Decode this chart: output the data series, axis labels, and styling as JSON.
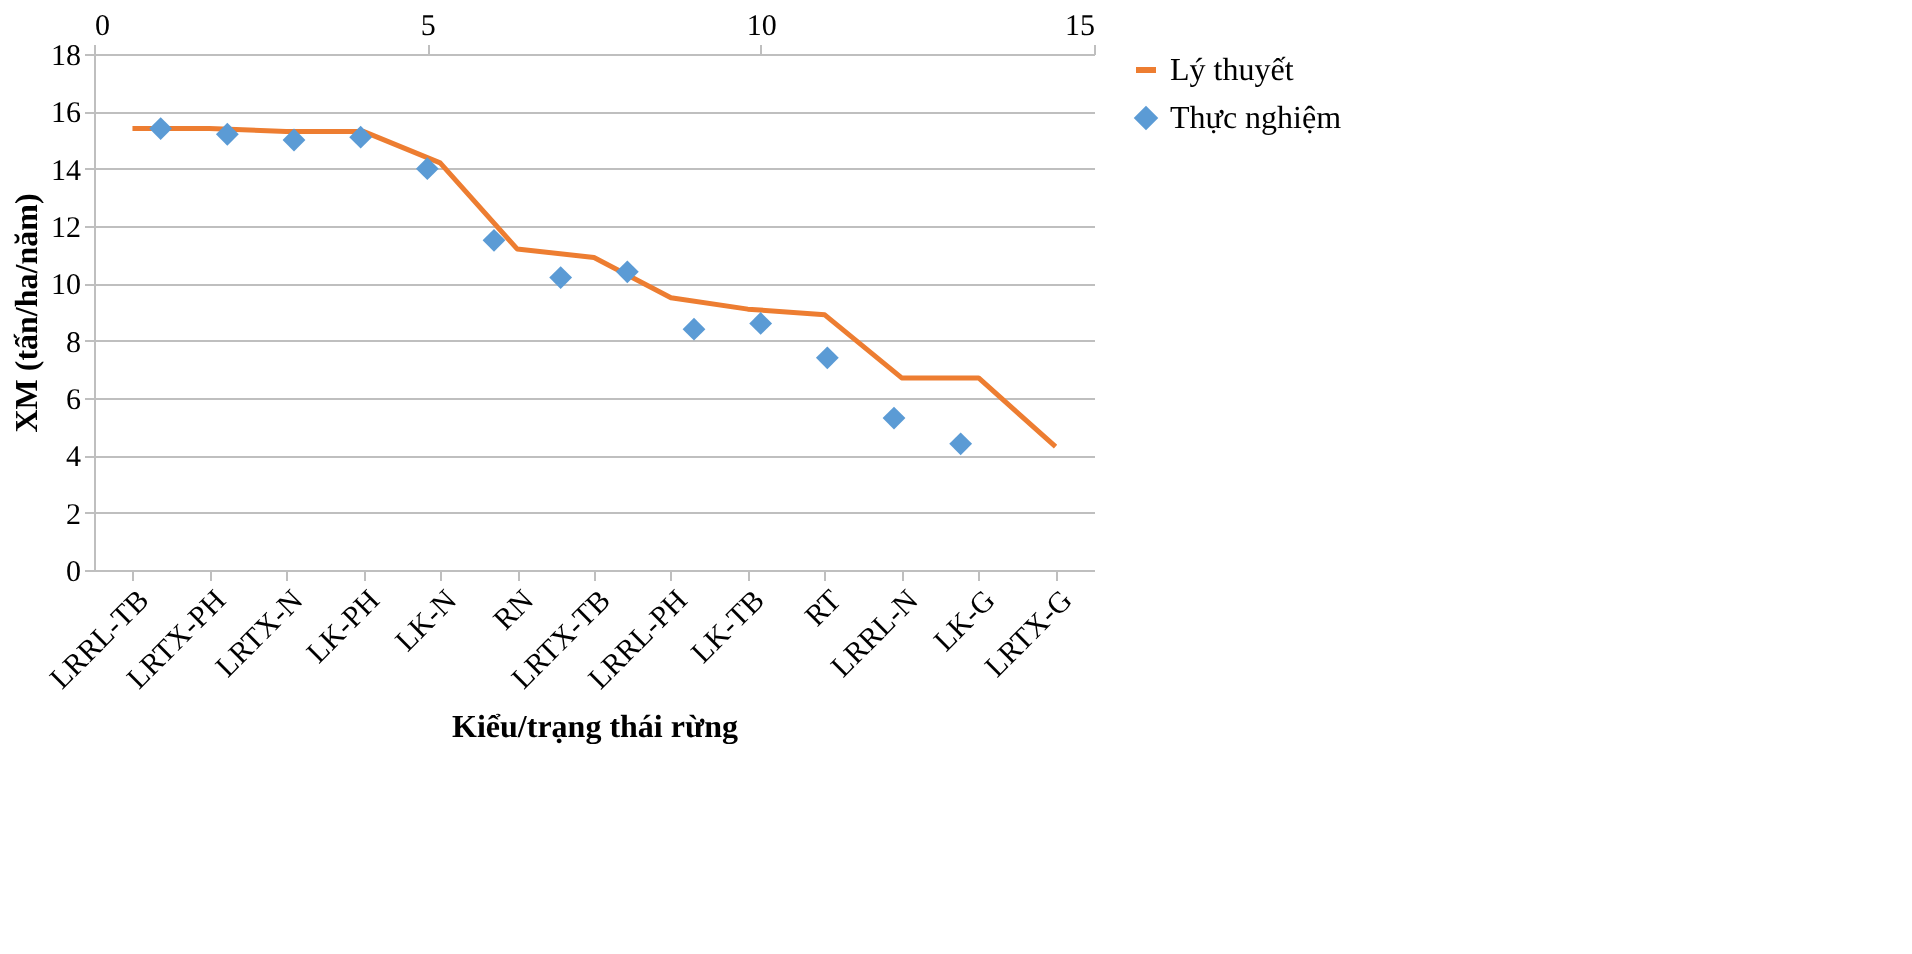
{
  "chart_data": {
    "type": "line",
    "xlabel": "Kiểu/trạng thái rừng",
    "ylabel": "XM (tấn/ha/năm)",
    "categories": [
      "LRRL-TB",
      "LRTX-PH",
      "LRTX-N",
      "LK-PH",
      "LK-N",
      "RN",
      "LRTX-TB",
      "LRRL-PH",
      "LK-TB",
      "RT",
      "LRRL-N",
      "LK-G",
      "LRTX-G"
    ],
    "series": [
      {
        "name": "Lý thuyết",
        "type": "line",
        "color": "#ed7d31",
        "line_style": "solid",
        "marker": "none",
        "values": [
          15.4,
          15.4,
          15.3,
          15.3,
          14.2,
          11.2,
          10.9,
          9.5,
          9.1,
          8.9,
          6.7,
          6.7,
          4.3
        ]
      },
      {
        "name": "Thực nghiệm",
        "type": "scatter",
        "axis": "x2",
        "color": "#5b9bd5",
        "marker": "diamond",
        "x": [
          1,
          2,
          3,
          4,
          5,
          6,
          7,
          8,
          9,
          10,
          11,
          12,
          13
        ],
        "values": [
          15.4,
          15.2,
          15.0,
          15.1,
          14.0,
          11.5,
          10.2,
          10.4,
          8.4,
          8.6,
          7.4,
          5.3,
          4.4
        ]
      }
    ],
    "ylim": [
      0,
      18
    ],
    "yticks": [
      0,
      2,
      4,
      6,
      8,
      10,
      12,
      14,
      16,
      18
    ],
    "x2lim": [
      0,
      15
    ],
    "x2ticks": [
      0,
      5,
      10,
      15
    ],
    "grid": "y",
    "legend": "right"
  }
}
